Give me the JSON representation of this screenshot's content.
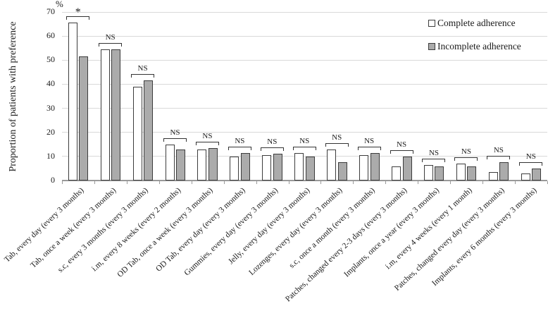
{
  "chart_data": {
    "type": "bar",
    "title": "",
    "unit": "%",
    "ylabel": "Proportion of patients with preference",
    "ylim": [
      0,
      70
    ],
    "yticks": [
      0,
      10,
      20,
      30,
      40,
      50,
      60,
      70
    ],
    "grid": true,
    "legend_position": "top-right",
    "categories": [
      "Tab, every day (every 3 months)",
      "Tab, once a week (every 3 months)",
      "s.c, every 3 months (every 3 months)",
      "i.m, every 8 weeks (every 2 months)",
      "OD Tab, once a week (every 3 months)",
      "OD Tab, every day (every 3 months)",
      "Gummies, every day (every 3 months)",
      "Jelly, every day (every 3 months)",
      "Lozenges, every day (every 3 months)",
      "s.c, once a month (every 3 months)",
      "Patches, changed every 2-3 days (every 3 months)",
      "Implants, once a year (every 3 months)",
      "i.m, every 4 weeks (every 1 month)",
      "Patches, changed every day (every 3 months)",
      "Implants, every 6 months (every 3 months)"
    ],
    "series": [
      {
        "name": "Complete adherence",
        "fill": "#ffffff",
        "values": [
          65.5,
          54.5,
          39,
          15,
          13,
          10,
          10.5,
          11.5,
          13,
          10.5,
          6,
          6.5,
          7,
          3.5,
          3
        ]
      },
      {
        "name": "Incomplete adherence",
        "fill": "#ababab",
        "values": [
          51.5,
          54.5,
          41.5,
          13,
          13.5,
          11.5,
          11,
          10,
          7.5,
          11.5,
          10,
          6,
          6,
          7.5,
          5
        ]
      }
    ],
    "significance": [
      "*",
      "NS",
      "NS",
      "NS",
      "NS",
      "NS",
      "NS",
      "NS",
      "NS",
      "NS",
      "NS",
      "NS",
      "NS",
      "NS",
      "NS"
    ],
    "colors": {
      "bar_border": "#3c3c3c",
      "gridline": "#d9d9d9",
      "axis": "#9a9a9a",
      "incomplete_fill": "#ababab",
      "complete_fill": "#ffffff"
    }
  }
}
